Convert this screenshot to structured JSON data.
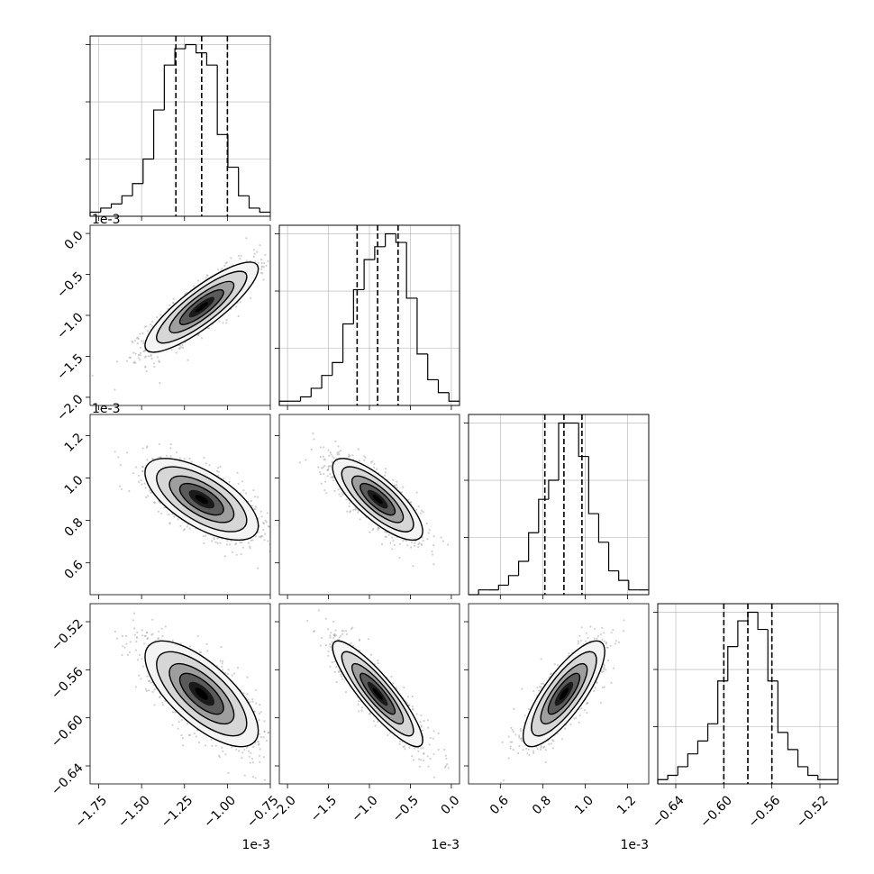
{
  "chart_data": {
    "type": "corner",
    "title": "",
    "n_params": 4,
    "grid": true,
    "quantile_lines": "dashed",
    "params": [
      {
        "label": "",
        "offset_text": "1e-3",
        "range": [
          -1.8,
          -0.75
        ],
        "ticks": [
          -1.75,
          -1.5,
          -1.25,
          -1.0,
          -0.75
        ],
        "tick_labels": [
          "−1.75",
          "−1.50",
          "−1.25",
          "−1.00",
          "−0.75"
        ],
        "quantiles": [
          -1.3,
          -1.15,
          -1.0
        ],
        "hist": [
          1,
          2,
          3,
          5,
          8,
          14,
          26,
          37,
          41,
          42,
          40,
          37,
          20,
          12,
          5,
          2,
          1
        ]
      },
      {
        "label": "",
        "offset_text": "1e-3",
        "range": [
          -2.1,
          0.1
        ],
        "ticks": [
          -2.0,
          -1.5,
          -1.0,
          -0.5,
          0.0
        ],
        "tick_labels": [
          "−2.0",
          "−1.5",
          "−1.0",
          "−0.5",
          "0.0"
        ],
        "quantiles": [
          -1.15,
          -0.9,
          -0.65
        ],
        "hist": [
          1,
          1,
          2,
          4,
          7,
          10,
          19,
          27,
          34,
          37,
          40,
          38,
          25,
          12,
          6,
          3,
          1
        ]
      },
      {
        "label": "",
        "offset_text": "1e-3",
        "range": [
          0.45,
          1.3
        ],
        "ticks": [
          0.6,
          0.8,
          1.0,
          1.2
        ],
        "tick_labels": [
          "0.6",
          "0.8",
          "1.0",
          "1.2"
        ],
        "quantiles": [
          0.81,
          0.9,
          0.985
        ],
        "hist": [
          0,
          1,
          1,
          2,
          4,
          7,
          13,
          20,
          24,
          36,
          36,
          29,
          17,
          11,
          5,
          3,
          1,
          1
        ]
      },
      {
        "label": "",
        "offset_text": "",
        "range": [
          -0.655,
          -0.505
        ],
        "ticks": [
          -0.64,
          -0.6,
          -0.56,
          -0.52
        ],
        "tick_labels": [
          "−0.64",
          "−0.60",
          "−0.56",
          "−0.52"
        ],
        "quantiles": [
          -0.6,
          -0.58,
          -0.56
        ],
        "hist": [
          1,
          2,
          4,
          7,
          10,
          14,
          24,
          32,
          38,
          40,
          36,
          24,
          12,
          8,
          4,
          2,
          1,
          1
        ]
      }
    ],
    "correlations": [
      {
        "row": 1,
        "col": 0,
        "rho": 0.85
      },
      {
        "row": 2,
        "col": 0,
        "rho": -0.65
      },
      {
        "row": 2,
        "col": 1,
        "rho": -0.78
      },
      {
        "row": 3,
        "col": 0,
        "rho": -0.7
      },
      {
        "row": 3,
        "col": 1,
        "rho": -0.88
      },
      {
        "row": 3,
        "col": 2,
        "rho": 0.8
      }
    ],
    "colors": {
      "line": "#000000",
      "grid": "#b0b0b0",
      "points": "#9a9a9a",
      "fill_levels": [
        "#f4f4f4",
        "#d6d6d6",
        "#9e9e9e",
        "#5a5a5a",
        "#1a1a1a",
        "#000000"
      ]
    }
  }
}
